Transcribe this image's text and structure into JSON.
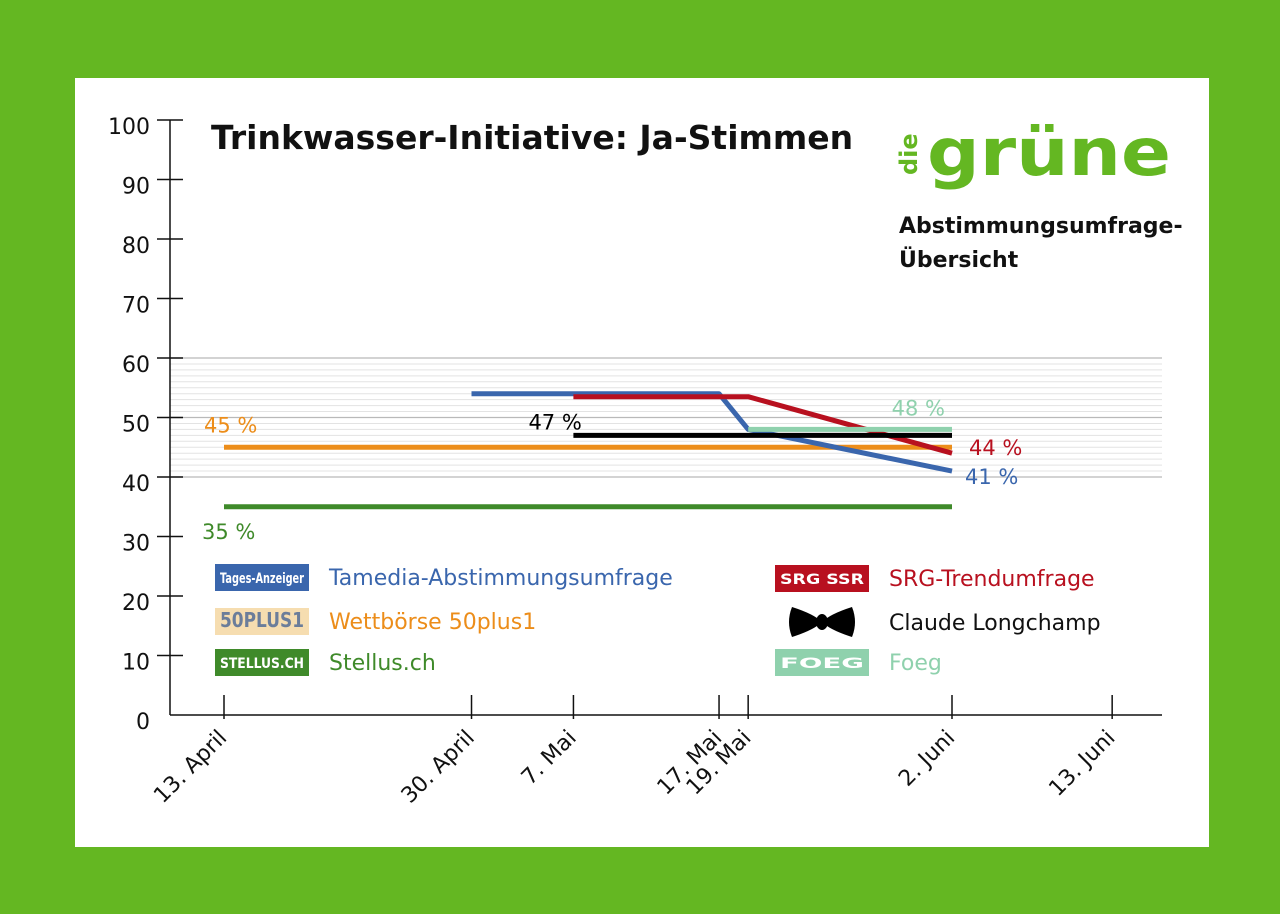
{
  "chart_data": {
    "type": "line",
    "title": "Trinkwasser-Initiative: Ja-Stimmen",
    "brand": {
      "prefix": "die",
      "name": "grüne",
      "color": "#64b722"
    },
    "subtitle_lines": [
      "Abstimmungsumfrage-",
      "Übersicht"
    ],
    "ylim": [
      0,
      100
    ],
    "yticks": [
      0,
      10,
      20,
      30,
      40,
      50,
      60,
      70,
      80,
      90,
      100
    ],
    "highlight_band": [
      40,
      60
    ],
    "x_ticks": [
      {
        "label": "13. April",
        "day": 0
      },
      {
        "label": "30. April",
        "day": 17
      },
      {
        "label": "7. Mai",
        "day": 24
      },
      {
        "label": "17. Mai",
        "day": 34
      },
      {
        "label": "19. Mai",
        "day": 36
      },
      {
        "label": "2. Juni",
        "day": 50
      },
      {
        "label": "13. Juni",
        "day": 61
      }
    ],
    "series": [
      {
        "key": "stellus",
        "name": "Stellus.ch",
        "color": "#3f8a2a",
        "points": [
          [
            0,
            35
          ],
          [
            50,
            35
          ]
        ],
        "end_label": "35 %",
        "label_at": "start"
      },
      {
        "key": "wettboerse",
        "name": "Wettbörse 50plus1",
        "color": "#ec8d1a",
        "points": [
          [
            0,
            45
          ],
          [
            50,
            45
          ]
        ],
        "end_label": "45 %",
        "label_at": "start"
      },
      {
        "key": "tamedia",
        "name": "Tamedia-Abstimmungsumfrage",
        "color": "#3a66ad",
        "points": [
          [
            17,
            54
          ],
          [
            34,
            54
          ],
          [
            36,
            48
          ],
          [
            50,
            41
          ]
        ],
        "end_label": "41 %",
        "label_at": "end"
      },
      {
        "key": "srg",
        "name": "SRG-Trendumfrage",
        "color": "#b8101f",
        "points": [
          [
            24,
            53.5
          ],
          [
            36,
            53.5
          ],
          [
            50,
            44
          ]
        ],
        "end_label": "44 %",
        "label_at": "end"
      },
      {
        "key": "longchamp",
        "name": "Claude Longchamp",
        "color": "#000000",
        "points": [
          [
            24,
            47
          ],
          [
            50,
            47
          ]
        ],
        "end_label": "47 %",
        "label_at": "start"
      },
      {
        "key": "foeg",
        "name": "Foeg",
        "color": "#8fd1ad",
        "points": [
          [
            36,
            48
          ],
          [
            50,
            48
          ]
        ],
        "end_label": "48 %",
        "label_at": "end"
      }
    ],
    "legend": [
      {
        "series": "tamedia",
        "logo": "Tages-Anzeiger",
        "logo_bg": "#3a66ad",
        "logo_fg": "#ffffff",
        "text_color": "#3a66ad"
      },
      {
        "series": "wettboerse",
        "logo": "50PLUS1",
        "logo_bg": "#f6ddb0",
        "logo_fg": "#6b7d9a",
        "text_color": "#ec8d1a"
      },
      {
        "series": "stellus",
        "logo": "STELLUS.CH",
        "logo_bg": "#3f8a2a",
        "logo_fg": "#ffffff",
        "text_color": "#3f8a2a"
      },
      {
        "series": "srg",
        "logo": "SRG SSR",
        "logo_bg": "#b8101f",
        "logo_fg": "#ffffff",
        "text_color": "#b8101f"
      },
      {
        "series": "longchamp",
        "logo": "",
        "logo_bg": "#000000",
        "logo_fg": "#ffffff",
        "text_color": "#111111"
      },
      {
        "series": "foeg",
        "logo": "FOEG",
        "logo_bg": "#8fd1ad",
        "logo_fg": "#ffffff",
        "text_color": "#8fd1ad"
      }
    ]
  }
}
